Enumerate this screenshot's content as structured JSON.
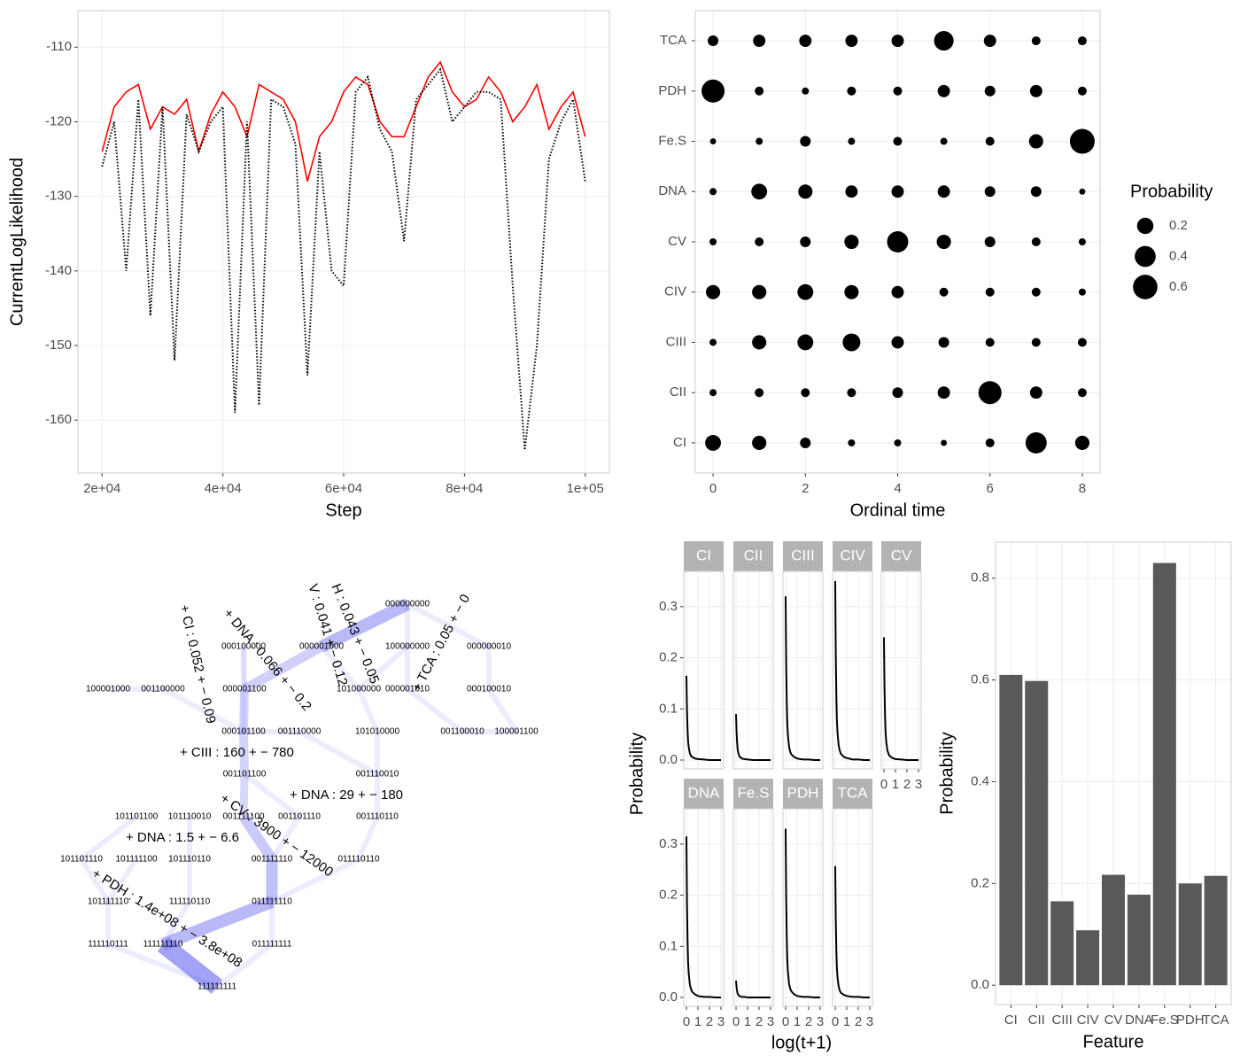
{
  "chart_data": [
    {
      "type": "line",
      "xlabel": "Step",
      "ylabel": "CurrentLogLikelihood",
      "x": [
        20000,
        22000,
        24000,
        26000,
        28000,
        30000,
        32000,
        34000,
        36000,
        38000,
        40000,
        42000,
        44000,
        46000,
        48000,
        50000,
        52000,
        54000,
        56000,
        58000,
        60000,
        62000,
        64000,
        66000,
        68000,
        70000,
        72000,
        74000,
        76000,
        78000,
        80000,
        82000,
        84000,
        86000,
        88000,
        90000,
        92000,
        94000,
        96000,
        98000,
        100000
      ],
      "series": [
        {
          "color": "#ff0000",
          "dash": "solid",
          "values": [
            -124,
            -118,
            -116,
            -115,
            -121,
            -118,
            -119,
            -117,
            -124,
            -119,
            -116,
            -118,
            -122,
            -115,
            -116,
            -117,
            -120,
            -128,
            -122,
            -120,
            -116,
            -114,
            -115,
            -120,
            -122,
            -122,
            -118,
            -114,
            -112,
            -116,
            -118,
            -117,
            -114,
            -116,
            -120,
            -118,
            -115,
            -121,
            -118,
            -116,
            -122
          ]
        },
        {
          "color": "#000000",
          "dash": "dotted",
          "values": [
            -126,
            -120,
            -140,
            -117,
            -146,
            -118,
            -152,
            -119,
            -124,
            -120,
            -118,
            -159,
            -120,
            -158,
            -117,
            -118,
            -123,
            -154,
            -124,
            -140,
            -142,
            -116,
            -114,
            -121,
            -124,
            -136,
            -117,
            -115,
            -113,
            -120,
            -118,
            -116,
            -116,
            -117,
            -142,
            -164,
            -150,
            -125,
            -120,
            -117,
            -128
          ]
        }
      ],
      "xlim": [
        16000,
        104000
      ],
      "ylim": [
        -167.1,
        -105.1
      ],
      "xticks": [
        {
          "value": 20000,
          "label": "2e+04"
        },
        {
          "value": 40000,
          "label": "4e+04"
        },
        {
          "value": 60000,
          "label": "6e+04"
        },
        {
          "value": 80000,
          "label": "8e+04"
        },
        {
          "value": 100000,
          "label": "1e+05"
        }
      ],
      "yticks": [
        -110,
        -120,
        -130,
        -140,
        -150,
        -160
      ],
      "grid": true
    },
    {
      "type": "bubble",
      "xlabel": "Ordinal time",
      "x": [
        0,
        1,
        2,
        3,
        4,
        5,
        6,
        7,
        8
      ],
      "categories": [
        "TCA",
        "PDH",
        "Fe.S",
        "DNA",
        "CV",
        "CIV",
        "CIII",
        "CII",
        "CI"
      ],
      "sizes": [
        [
          0.046,
          0.08,
          0.08,
          0.08,
          0.08,
          0.33,
          0.08,
          0.02,
          0.02
        ],
        [
          0.51,
          0.02,
          0.005,
          0.02,
          0.02,
          0.08,
          0.046,
          0.08,
          0.02
        ],
        [
          0.001,
          0.005,
          0.046,
          0.005,
          0.02,
          0.005,
          0.02,
          0.13,
          0.62
        ],
        [
          0.005,
          0.18,
          0.13,
          0.08,
          0.08,
          0.08,
          0.046,
          0.046,
          0.001
        ],
        [
          0.005,
          0.02,
          0.046,
          0.13,
          0.41,
          0.13,
          0.046,
          0.02,
          0.005
        ],
        [
          0.13,
          0.13,
          0.18,
          0.13,
          0.08,
          0.02,
          0.02,
          0.02,
          0.005
        ],
        [
          0.005,
          0.13,
          0.18,
          0.25,
          0.08,
          0.046,
          0.02,
          0.02,
          0.02
        ],
        [
          0.005,
          0.02,
          0.02,
          0.02,
          0.046,
          0.08,
          0.51,
          0.08,
          0.02
        ],
        [
          0.18,
          0.13,
          0.046,
          0.005,
          0.005,
          0.001,
          0.02,
          0.41,
          0.13
        ]
      ],
      "xlim": [
        -0.385,
        8.385
      ],
      "xticks": [
        0,
        2,
        4,
        6,
        8
      ],
      "color": "#000000",
      "grid": true,
      "legend": {
        "title": "Probability",
        "values": [
          0.2,
          0.4,
          0.6
        ]
      }
    },
    {
      "type": "line",
      "xlabel": "log(t+1)",
      "ylabel": "Probability",
      "x": [
        0,
        0.05,
        0.1,
        0.15,
        0.2,
        0.3,
        0.4,
        0.5,
        0.75,
        1,
        1.5,
        2,
        2.5,
        3
      ],
      "facets": [
        {
          "name": "CI",
          "values": [
            0.165,
            0.099,
            0.058,
            0.036,
            0.025,
            0.013,
            0.008,
            0.006,
            0.003,
            0.002,
            0.001,
            0,
            0,
            0
          ]
        },
        {
          "name": "CII",
          "values": [
            0.09,
            0.054,
            0.032,
            0.02,
            0.014,
            0.007,
            0.005,
            0.003,
            0.002,
            0.001,
            0,
            0,
            0,
            0
          ]
        },
        {
          "name": "CIII",
          "values": [
            0.32,
            0.192,
            0.112,
            0.07,
            0.048,
            0.026,
            0.016,
            0.011,
            0.006,
            0.003,
            0.001,
            0.001,
            0,
            0
          ]
        },
        {
          "name": "CIV",
          "values": [
            0.35,
            0.21,
            0.123,
            0.077,
            0.053,
            0.028,
            0.018,
            0.012,
            0.006,
            0.004,
            0.001,
            0.001,
            0,
            0
          ]
        },
        {
          "name": "CV",
          "values": [
            0.24,
            0.144,
            0.084,
            0.053,
            0.036,
            0.019,
            0.012,
            0.008,
            0.004,
            0.002,
            0.001,
            0,
            0,
            0
          ]
        },
        {
          "name": "DNA",
          "values": [
            0.315,
            0.189,
            0.11,
            0.069,
            0.047,
            0.025,
            0.016,
            0.011,
            0.006,
            0.003,
            0.001,
            0.001,
            0,
            0
          ]
        },
        {
          "name": "Fe.S",
          "values": [
            0.033,
            0.02,
            0.012,
            0.007,
            0.005,
            0.003,
            0.002,
            0.001,
            0.001,
            0,
            0,
            0,
            0,
            0
          ]
        },
        {
          "name": "PDH",
          "values": [
            0.33,
            0.198,
            0.116,
            0.073,
            0.05,
            0.026,
            0.017,
            0.012,
            0.006,
            0.003,
            0.001,
            0.001,
            0,
            0
          ]
        },
        {
          "name": "TCA",
          "values": [
            0.257,
            0.154,
            0.09,
            0.057,
            0.039,
            0.021,
            0.013,
            0.009,
            0.005,
            0.003,
            0.001,
            0.001,
            0,
            0
          ]
        }
      ],
      "xlim": [
        -0.23,
        3.23
      ],
      "xticks": [
        0,
        1,
        2,
        3
      ],
      "ylim": [
        -0.0173,
        0.369
      ],
      "yticks": [
        {
          "value": 0,
          "label": "0.0"
        },
        0.1,
        0.2,
        0.3
      ],
      "color": "#000000",
      "grid": true
    },
    {
      "type": "bar",
      "xlabel": "Feature",
      "ylabel": "Probability",
      "categories": [
        "CI",
        "CII",
        "CIII",
        "CIV",
        "CV",
        "DNA",
        "Fe.S",
        "PDH",
        "TCA"
      ],
      "values": [
        0.61,
        0.598,
        0.165,
        0.108,
        0.217,
        0.178,
        0.83,
        0.2,
        0.215
      ],
      "ylim": [
        -0.038,
        0.871
      ],
      "yticks": [
        {
          "value": 0,
          "label": "0.0"
        },
        0.2,
        0.4,
        0.6,
        0.8
      ],
      "color": "#595959",
      "grid": true
    }
  ],
  "graph": {
    "nodes": [
      "000000000",
      "000100000",
      "000001000",
      "100000000",
      "000000010",
      "100001000",
      "001100000",
      "000001100",
      "101000000",
      "000001010",
      "000100010",
      "000101100",
      "001110000",
      "101010000",
      "001100010",
      "100001100",
      "001101100",
      "001110010",
      "101101100",
      "101110010",
      "001111100",
      "001101110",
      "001110110",
      "101101110",
      "101111100",
      "101110110",
      "001111110",
      "011110110",
      "101111110",
      "111110110",
      "011111110",
      "111110111",
      "111111110",
      "011111111",
      "111111111"
    ],
    "edge_labels": [
      "+ CI : 0.052 + − 0.09",
      "+ DNA : 0.066 + − 0.2",
      "V : 0.041 + − 0.12",
      "H : 0.043 + − 0.05",
      "+ TCA : 0.05 + − 0",
      "+ CIII : 160 + − 780",
      "+ DNA : 29 + − 180",
      "+ CV : 3900 + − 12000",
      "+ DNA : 1.5 + − 6.6",
      "+ PDH : 1.4e+08 + − 3.8e+08"
    ]
  }
}
